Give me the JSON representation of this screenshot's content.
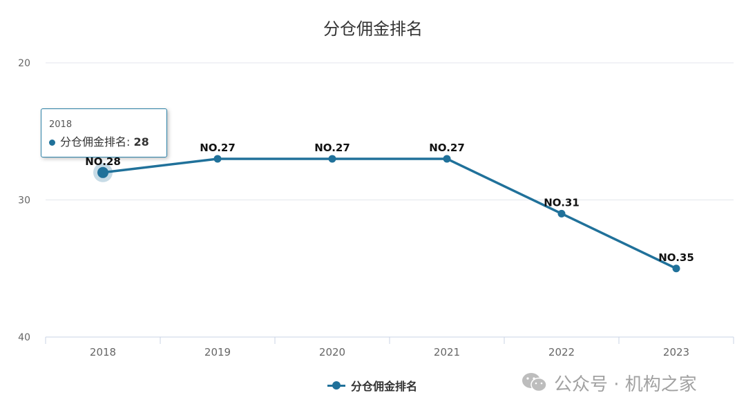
{
  "chart_data": {
    "type": "line",
    "title": "分仓佣金排名",
    "categories": [
      "2018",
      "2019",
      "2020",
      "2021",
      "2022",
      "2023"
    ],
    "series": [
      {
        "name": "分仓佣金排名",
        "values": [
          28,
          27,
          27,
          27,
          31,
          35
        ],
        "data_labels": [
          "NO.28",
          "NO.27",
          "NO.27",
          "NO.27",
          "NO.31",
          "NO.35"
        ],
        "color": "#20719a"
      }
    ],
    "y_axis": {
      "inverse": true,
      "min": 20,
      "max": 40,
      "ticks": [
        20,
        30,
        40
      ]
    },
    "grid": true,
    "legend_position": "bottom-center"
  },
  "tooltip": {
    "category": "2018",
    "series_label": "分仓佣金排名:",
    "value": "28"
  },
  "watermark": {
    "text": "公众号 · 机构之家",
    "icon": "wechat-icon"
  }
}
